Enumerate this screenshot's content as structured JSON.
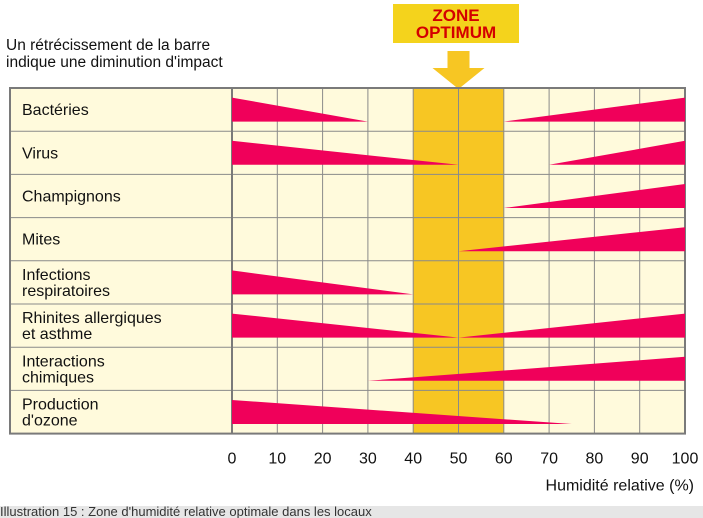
{
  "header": {
    "note_line1": "Un rétrécissement de la barre",
    "note_line2": "indique une diminution d'impact",
    "zone_line1": "ZONE",
    "zone_line2": "OPTIMUM"
  },
  "caption": "Illustration 15 : Zone d'humidité relative optimale dans les locaux",
  "colors": {
    "bar": "#f0005a",
    "grid_bg": "#fffadc",
    "zone": "#f7c623",
    "arrow": "#f7c623",
    "label_bg": "#fffadc",
    "grid_line": "#8a8a8a"
  },
  "chart_data": {
    "type": "bar",
    "title": "",
    "xlabel": "Humidité relative (%)",
    "xlim": [
      0,
      100
    ],
    "xticks": [
      0,
      10,
      20,
      30,
      40,
      50,
      60,
      70,
      80,
      90,
      100
    ],
    "optimum_zone": [
      40,
      60
    ],
    "note": "Un rétrécissement de la barre indique une diminution d'impact",
    "categories": [
      "Bactéries",
      "Virus",
      "Champignons",
      "Mites",
      "Infections\nrespiratoires",
      "Rhinites allergiques\net asthme",
      "Interactions\nchimiques",
      "Production\nd'ozone"
    ],
    "series": [
      {
        "left": {
          "start": 0,
          "end": 30
        },
        "right": {
          "start": 60,
          "end": 100
        }
      },
      {
        "left": {
          "start": 0,
          "end": 50
        },
        "right": {
          "start": 70,
          "end": 100
        }
      },
      {
        "left": null,
        "right": {
          "start": 60,
          "end": 100
        }
      },
      {
        "left": null,
        "right": {
          "start": 50,
          "end": 100
        }
      },
      {
        "left": {
          "start": 0,
          "end": 40
        },
        "right": null
      },
      {
        "left": {
          "start": 0,
          "end": 50
        },
        "right": {
          "start": 50,
          "end": 100
        }
      },
      {
        "left": null,
        "right": {
          "start": 30,
          "end": 100
        }
      },
      {
        "left": {
          "start": 0,
          "end": 75
        },
        "right": null
      }
    ]
  }
}
